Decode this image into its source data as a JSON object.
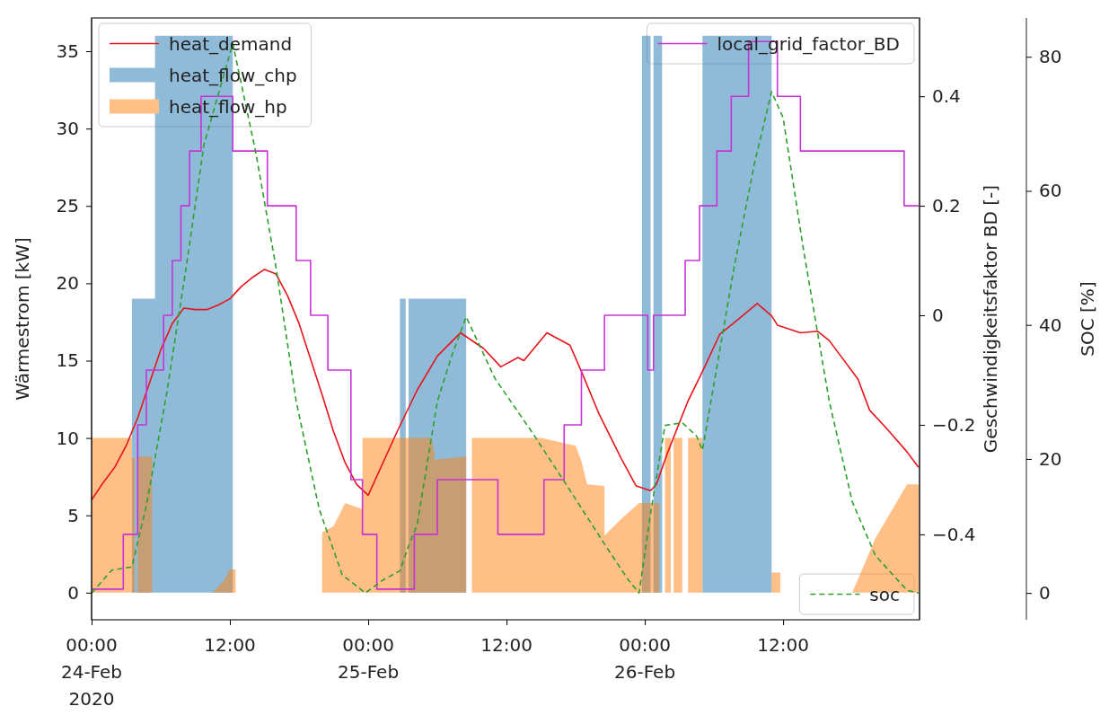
{
  "chart_data": {
    "type": "line",
    "ylabel": "Wärmestrom [kW]",
    "y2label": "Geschwindigkeitsfaktor BD [-]",
    "y3label": "SOC [%]",
    "xlim": [
      "2020-02-24T00:00",
      "2020-02-26T23:50"
    ],
    "xticks": [
      {
        "value": "2020-02-24T00:00",
        "label": "00:00\n24-Feb\n2020"
      },
      {
        "value": "2020-02-24T12:00",
        "label": "12:00"
      },
      {
        "value": "2020-02-25T00:00",
        "label": "00:00\n25-Feb"
      },
      {
        "value": "2020-02-25T12:00",
        "label": "12:00"
      },
      {
        "value": "2020-02-26T00:00",
        "label": "00:00\n26-Feb"
      },
      {
        "value": "2020-02-26T12:00",
        "label": "12:00"
      }
    ],
    "ylim": [
      -1.75,
      37.15
    ],
    "yticks": [
      0,
      5,
      10,
      15,
      20,
      25,
      30,
      35
    ],
    "y2lim": [
      -0.556,
      0.543
    ],
    "y2ticks": [
      -0.4,
      -0.2,
      0,
      0.2,
      0.4
    ],
    "y3lim": [
      -4.0,
      85.8
    ],
    "y3ticks": [
      0,
      20,
      40,
      60,
      80
    ],
    "grid": false,
    "legend": "top left",
    "series": [
      {
        "name": "heat_flow_chp",
        "type": "area",
        "color": "#8fbbd9",
        "x": [
          "2020-02-24T00:00",
          "2020-02-24T03:30",
          "2020-02-24T03:30",
          "2020-02-24T05:30",
          "2020-02-24T05:30",
          "2020-02-24T12:15",
          "2020-02-24T12:15",
          "2020-02-25T02:45",
          "2020-02-25T02:45",
          "2020-02-25T03:15",
          "2020-02-25T03:15",
          "2020-02-25T03:30",
          "2020-02-25T03:30",
          "2020-02-25T08:30",
          "2020-02-25T08:30",
          "2020-02-25T23:45",
          "2020-02-25T23:45",
          "2020-02-26T00:30",
          "2020-02-26T00:30",
          "2020-02-26T00:45",
          "2020-02-26T00:45",
          "2020-02-26T01:30",
          "2020-02-26T01:30",
          "2020-02-26T05:00",
          "2020-02-26T05:00",
          "2020-02-26T11:00",
          "2020-02-26T11:00",
          "2020-02-26T23:45"
        ],
        "values": [
          0,
          0,
          19,
          19,
          36,
          36,
          0,
          0,
          19,
          19,
          0,
          0,
          19,
          19,
          0,
          0,
          36,
          36,
          0,
          0,
          36,
          36,
          0,
          0,
          36,
          36,
          0,
          0
        ]
      },
      {
        "name": "heat_flow_hp",
        "type": "area",
        "color": "#ffbf86",
        "x": [
          "2020-02-24T00:00",
          "2020-02-24T03:30",
          "2020-02-24T03:30",
          "2020-02-24T03:45",
          "2020-02-24T03:45",
          "2020-02-24T04:00",
          "2020-02-24T04:00",
          "2020-02-24T05:15",
          "2020-02-24T05:15",
          "2020-02-24T10:30",
          "2020-02-24T11:30",
          "2020-02-24T12:00",
          "2020-02-24T12:30",
          "2020-02-24T12:30",
          "2020-02-24T20:00",
          "2020-02-24T20:00",
          "2020-02-24T21:00",
          "2020-02-24T22:00",
          "2020-02-24T22:45",
          "2020-02-24T23:30",
          "2020-02-24T23:30",
          "2020-02-25T05:30",
          "2020-02-25T05:45",
          "2020-02-25T05:45",
          "2020-02-25T08:30",
          "2020-02-25T08:30",
          "2020-02-25T09:00",
          "2020-02-25T09:00",
          "2020-02-25T15:00",
          "2020-02-25T18:00",
          "2020-02-25T18:30",
          "2020-02-25T19:00",
          "2020-02-25T20:30",
          "2020-02-25T20:30",
          "2020-02-25T22:00",
          "2020-02-25T23:30",
          "2020-02-26T01:15",
          "2020-02-26T01:15",
          "2020-02-26T01:45",
          "2020-02-26T01:45",
          "2020-02-26T02:15",
          "2020-02-26T02:15",
          "2020-02-26T02:30",
          "2020-02-26T02:30",
          "2020-02-26T03:15",
          "2020-02-26T03:15",
          "2020-02-26T03:45",
          "2020-02-26T03:45",
          "2020-02-26T05:00",
          "2020-02-26T05:00",
          "2020-02-26T11:00",
          "2020-02-26T11:00",
          "2020-02-26T11:45",
          "2020-02-26T11:45",
          "2020-02-26T18:00",
          "2020-02-26T20:00",
          "2020-02-26T22:45",
          "2020-02-26T23:45"
        ],
        "values": [
          10,
          10,
          8.7,
          8.7,
          0,
          0,
          8.8,
          8.8,
          0,
          0,
          0.8,
          1.5,
          1.5,
          0,
          0,
          3.9,
          4.3,
          5.8,
          5.6,
          5.4,
          10,
          10,
          9.0,
          8.6,
          8.8,
          0,
          0,
          10,
          10,
          9.5,
          8.5,
          7.0,
          6.9,
          3.7,
          4.8,
          5.8,
          5.8,
          0,
          0,
          10,
          10,
          0,
          0,
          10,
          10,
          0,
          0,
          10,
          10,
          0,
          0,
          1.3,
          1.3,
          0,
          0,
          3.5,
          7.0,
          7.0
        ]
      },
      {
        "name": "heat_demand",
        "color": "#e8141c",
        "x": [
          "2020-02-24T00:00",
          "2020-02-24T01:00",
          "2020-02-24T02:00",
          "2020-02-24T03:00",
          "2020-02-24T04:00",
          "2020-02-24T05:00",
          "2020-02-24T06:00",
          "2020-02-24T07:00",
          "2020-02-24T08:00",
          "2020-02-24T09:00",
          "2020-02-24T10:00",
          "2020-02-24T11:00",
          "2020-02-24T12:00",
          "2020-02-24T13:00",
          "2020-02-24T14:00",
          "2020-02-24T15:00",
          "2020-02-24T16:00",
          "2020-02-24T17:00",
          "2020-02-24T18:00",
          "2020-02-24T19:00",
          "2020-02-24T20:00",
          "2020-02-24T21:00",
          "2020-02-24T22:00",
          "2020-02-24T23:00",
          "2020-02-25T00:00",
          "2020-02-25T02:30",
          "2020-02-25T04:15",
          "2020-02-25T06:00",
          "2020-02-25T08:00",
          "2020-02-25T10:00",
          "2020-02-25T11:30",
          "2020-02-25T13:00",
          "2020-02-25T13:30",
          "2020-02-25T15:30",
          "2020-02-25T17:30",
          "2020-02-25T18:30",
          "2020-02-25T20:00",
          "2020-02-25T22:00",
          "2020-02-25T23:15",
          "2020-02-26T00:30",
          "2020-02-26T01:00",
          "2020-02-26T02:00",
          "2020-02-26T03:45",
          "2020-02-26T05:00",
          "2020-02-26T06:30",
          "2020-02-26T08:00",
          "2020-02-26T09:45",
          "2020-02-26T11:00",
          "2020-02-26T11:30",
          "2020-02-26T13:30",
          "2020-02-26T15:00",
          "2020-02-26T16:00",
          "2020-02-26T18:30",
          "2020-02-26T19:30",
          "2020-02-26T21:00",
          "2020-02-26T22:45",
          "2020-02-26T23:45"
        ],
        "values": [
          6.0,
          7.1,
          8.1,
          9.5,
          11.3,
          13.5,
          15.7,
          17.4,
          18.4,
          18.3,
          18.3,
          18.6,
          19.0,
          19.8,
          20.4,
          20.9,
          20.6,
          19.2,
          17.4,
          15.1,
          12.8,
          10.4,
          8.4,
          7.0,
          6.3,
          10.4,
          13.1,
          15.3,
          16.8,
          15.8,
          14.6,
          15.2,
          15.0,
          16.8,
          16.0,
          14.3,
          11.6,
          8.6,
          6.9,
          6.6,
          7.0,
          9.1,
          12.4,
          14.3,
          16.7,
          17.6,
          18.7,
          17.9,
          17.3,
          16.8,
          16.9,
          16.3,
          13.8,
          11.8,
          10.6,
          9.1,
          8.1
        ]
      },
      {
        "name": "local_grid_factor_BD",
        "type": "step",
        "axis": "y2",
        "color": "#c733d6",
        "x": [
          "2020-02-24T00:00",
          "2020-02-24T02:45",
          "2020-02-24T04:00",
          "2020-02-24T04:45",
          "2020-02-24T06:15",
          "2020-02-24T07:00",
          "2020-02-24T07:45",
          "2020-02-24T08:30",
          "2020-02-24T09:30",
          "2020-02-24T12:15",
          "2020-02-24T15:15",
          "2020-02-24T17:45",
          "2020-02-24T19:00",
          "2020-02-24T20:30",
          "2020-02-24T22:30",
          "2020-02-24T23:30",
          "2020-02-25T00:45",
          "2020-02-25T04:00",
          "2020-02-25T06:00",
          "2020-02-25T11:15",
          "2020-02-25T15:15",
          "2020-02-25T17:00",
          "2020-02-25T18:30",
          "2020-02-25T20:30",
          "2020-02-26T00:15",
          "2020-02-26T00:45",
          "2020-02-26T03:30",
          "2020-02-26T04:45",
          "2020-02-26T06:15",
          "2020-02-26T07:30",
          "2020-02-26T09:00",
          "2020-02-26T11:30",
          "2020-02-26T13:30",
          "2020-02-26T22:30",
          "2020-02-26T23:45"
        ],
        "values": [
          -0.5,
          -0.4,
          -0.2,
          -0.1,
          0,
          0.1,
          0.2,
          0.3,
          0.4,
          0.3,
          0.2,
          0.1,
          0,
          -0.1,
          -0.3,
          -0.4,
          -0.5,
          -0.4,
          -0.3,
          -0.4,
          -0.3,
          -0.2,
          -0.1,
          0,
          -0.1,
          0,
          0.1,
          0.2,
          0.3,
          0.4,
          0.5,
          0.4,
          0.3,
          0.2,
          0.2
        ]
      },
      {
        "name": "soc",
        "axis": "y3",
        "line_style": "dashed",
        "color": "#2ca02c",
        "x": [
          "2020-02-24T00:00",
          "2020-02-24T01:45",
          "2020-02-24T03:30",
          "2020-02-24T04:45",
          "2020-02-24T06:30",
          "2020-02-24T08:15",
          "2020-02-24T09:45",
          "2020-02-24T12:15",
          "2020-02-24T14:15",
          "2020-02-24T16:00",
          "2020-02-24T17:45",
          "2020-02-24T19:45",
          "2020-02-24T21:45",
          "2020-02-24T23:45",
          "2020-02-25T01:15",
          "2020-02-25T02:45",
          "2020-02-25T03:30",
          "2020-02-25T04:15",
          "2020-02-25T06:00",
          "2020-02-25T07:15",
          "2020-02-25T08:30",
          "2020-02-25T11:00",
          "2020-02-25T14:15",
          "2020-02-25T17:15",
          "2020-02-25T20:30",
          "2020-02-25T22:30",
          "2020-02-25T23:30",
          "2020-02-26T00:30",
          "2020-02-26T01:45",
          "2020-02-26T03:15",
          "2020-02-26T04:30",
          "2020-02-26T05:00",
          "2020-02-26T07:45",
          "2020-02-26T09:30",
          "2020-02-26T11:00",
          "2020-02-26T12:00",
          "2020-02-26T13:45",
          "2020-02-26T16:00",
          "2020-02-26T18:00",
          "2020-02-26T20:00",
          "2020-02-26T22:45",
          "2020-02-26T23:45"
        ],
        "values": [
          0,
          3.4,
          3.9,
          13,
          29.6,
          49.1,
          66.9,
          82,
          65.7,
          48.6,
          28.6,
          12.5,
          2.7,
          0,
          1.9,
          3.3,
          7.0,
          10.2,
          28.6,
          35.4,
          41.2,
          32,
          23.9,
          16,
          7.3,
          2.1,
          0,
          11.9,
          25,
          25.4,
          23.4,
          21.3,
          48.6,
          64.0,
          74.8,
          70.9,
          51.4,
          28.6,
          13.6,
          5.6,
          0.4,
          0
        ]
      }
    ]
  }
}
